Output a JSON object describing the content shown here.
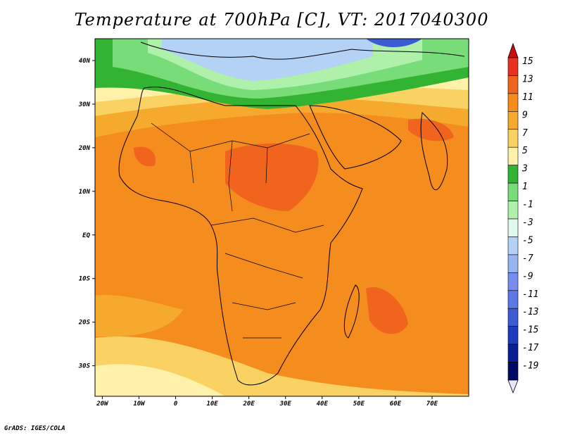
{
  "title": "Temperature at 700hPa [C], VT: 2017040300",
  "credit": "GrADS: IGES/COLA",
  "map": {
    "lon_range": [
      -22,
      80
    ],
    "lat_range": [
      -37,
      45
    ],
    "lon_ticks": [
      {
        "value": -20,
        "label": "20W"
      },
      {
        "value": -10,
        "label": "10W"
      },
      {
        "value": 0,
        "label": "0"
      },
      {
        "value": 10,
        "label": "10E"
      },
      {
        "value": 20,
        "label": "20E"
      },
      {
        "value": 30,
        "label": "30E"
      },
      {
        "value": 40,
        "label": "40E"
      },
      {
        "value": 50,
        "label": "50E"
      },
      {
        "value": 60,
        "label": "60E"
      },
      {
        "value": 70,
        "label": "70E"
      }
    ],
    "lat_ticks": [
      {
        "value": 40,
        "label": "40N"
      },
      {
        "value": 30,
        "label": "30N"
      },
      {
        "value": 20,
        "label": "20N"
      },
      {
        "value": 10,
        "label": "10N"
      },
      {
        "value": 0,
        "label": "EQ"
      },
      {
        "value": -10,
        "label": "10S"
      },
      {
        "value": -20,
        "label": "20S"
      },
      {
        "value": -30,
        "label": "30S"
      }
    ]
  },
  "colorbar": {
    "levels": [
      "15",
      "13",
      "11",
      "9",
      "7",
      "5",
      "3",
      "1",
      "-1",
      "-3",
      "-5",
      "-7",
      "-9",
      "-11",
      "-13",
      "-15",
      "-17",
      "-19"
    ],
    "colors": [
      "#e8321e",
      "#f0641e",
      "#f58c1e",
      "#f5aa2d",
      "#fad264",
      "#fff0aa",
      "#32b432",
      "#78dc78",
      "#aff0aa",
      "#e1faf0",
      "#b4d2f5",
      "#96b4f0",
      "#788cf0",
      "#5a78e6",
      "#3c5ad2",
      "#1e3cbe",
      "#0a1e96",
      "#000a64"
    ],
    "top_arrow_color": "#c80f0f",
    "bottom_arrow_color": "#e6e6ff"
  }
}
